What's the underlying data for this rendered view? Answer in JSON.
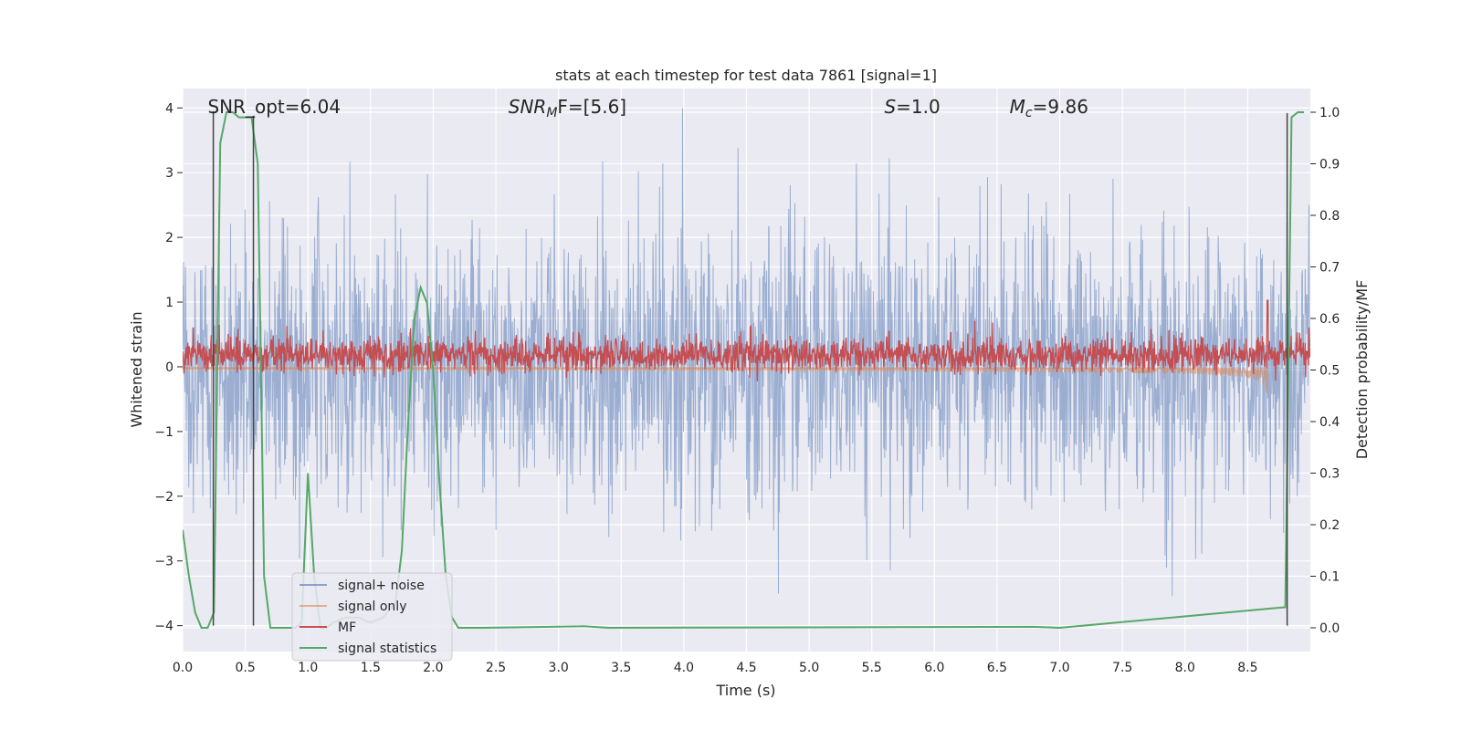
{
  "chart_data": {
    "type": "line",
    "title": "stats at each timestep for test data 7861 [signal=1]",
    "xlabel": "Time (s)",
    "ylabel": "Whitened strain",
    "y2label": "Detection probability/MF",
    "xlim": [
      0.0,
      9.0
    ],
    "ylim": [
      -4.4,
      4.3
    ],
    "y2lim": [
      -0.046,
      1.046
    ],
    "x_ticks": [
      "0.0",
      "0.5",
      "1.0",
      "1.5",
      "2.0",
      "2.5",
      "3.0",
      "3.5",
      "4.0",
      "4.5",
      "5.0",
      "5.5",
      "6.0",
      "6.5",
      "7.0",
      "7.5",
      "8.0",
      "8.5"
    ],
    "y_ticks": [
      "4",
      "3",
      "2",
      "1",
      "0",
      "−1",
      "−2",
      "−3",
      "−4"
    ],
    "y2_ticks": [
      "1.0",
      "0.9",
      "0.8",
      "0.7",
      "0.6",
      "0.5",
      "0.4",
      "0.3",
      "0.2",
      "0.1",
      "0.0"
    ],
    "grid": true,
    "legend_position": "lower-left",
    "annotations": [
      {
        "text": "SNR_opt=6.04",
        "x": 0.2
      },
      {
        "text": "SNR",
        "sub": "M",
        "after": "F=[5.6]",
        "x": 2.6
      },
      {
        "text": "S",
        "after": "=1.0",
        "x": 5.6
      },
      {
        "text": "M",
        "sub": "c",
        "after": "=9.86",
        "x": 6.6
      }
    ],
    "series": [
      {
        "name": "signal+ noise",
        "color": "#4c72b0",
        "axis": "left",
        "kind": "noise",
        "std": 1.0
      },
      {
        "name": "signal only",
        "color": "#dd8452",
        "axis": "left",
        "kind": "chirp",
        "t_merge": 8.66,
        "amp_peak": 1.15
      },
      {
        "name": "MF",
        "color": "#c44e52",
        "axis": "right",
        "kind": "mf",
        "baseline": 0.52,
        "peak_t": 8.66,
        "peak_v": 0.635
      },
      {
        "name": "signal statistics",
        "color": "#55a868",
        "axis": "right",
        "kind": "line",
        "x": [
          0.0,
          0.05,
          0.1,
          0.15,
          0.2,
          0.25,
          0.3,
          0.35,
          0.4,
          0.45,
          0.5,
          0.55,
          0.6,
          0.65,
          0.7,
          0.75,
          0.8,
          0.85,
          0.9,
          0.95,
          1.0,
          1.05,
          1.1,
          1.15,
          1.2,
          1.3,
          1.4,
          1.5,
          1.6,
          1.7,
          1.75,
          1.8,
          1.85,
          1.9,
          1.95,
          2.0,
          2.05,
          2.1,
          2.15,
          2.2,
          2.3,
          2.4,
          3.2,
          3.4,
          6.8,
          7.0,
          8.8,
          8.85,
          8.9,
          8.95
        ],
        "y": [
          0.19,
          0.1,
          0.03,
          0.0,
          0.0,
          0.03,
          0.94,
          1.0,
          1.0,
          0.99,
          0.99,
          0.99,
          0.9,
          0.1,
          0.0,
          0.0,
          0.0,
          0.0,
          0.0,
          0.01,
          0.3,
          0.1,
          0.0,
          0.0,
          0.01,
          0.02,
          0.02,
          0.01,
          0.02,
          0.05,
          0.15,
          0.4,
          0.6,
          0.66,
          0.63,
          0.5,
          0.28,
          0.1,
          0.02,
          0.0,
          0.0,
          0.0,
          0.003,
          0.0,
          0.002,
          0.0,
          0.04,
          0.99,
          1.0,
          1.0
        ]
      }
    ],
    "vertical_markers": [
      {
        "x": 0.245,
        "y_top": 3.95,
        "y_bottom": -4.0
      },
      {
        "x": 0.565,
        "y_top": 3.88,
        "y_bottom": -4.0
      },
      {
        "x": 8.815,
        "y_top": 3.92,
        "y_bottom": -4.0
      }
    ]
  },
  "colors": {
    "plot_background": "#eaeaf2",
    "grid": "#ffffff",
    "marker": "#444444"
  }
}
